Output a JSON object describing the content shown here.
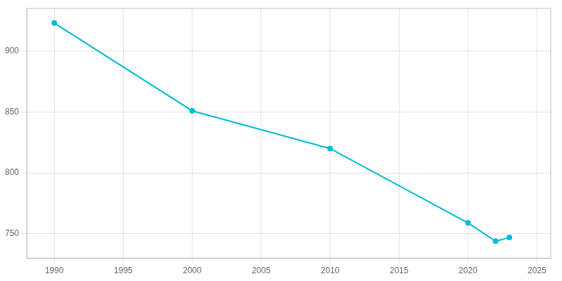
{
  "chart_data": {
    "type": "line",
    "x": [
      1990,
      2000,
      2010,
      2020,
      2022,
      2023
    ],
    "values": [
      923,
      851,
      820,
      759,
      744,
      747
    ],
    "color": "#00bcd4",
    "marker": "circle",
    "xlim": [
      1988,
      2026
    ],
    "ylim": [
      730,
      935
    ],
    "xticks": [
      1990,
      1995,
      2000,
      2005,
      2010,
      2015,
      2020,
      2025
    ],
    "yticks": [
      750,
      800,
      850,
      900
    ],
    "grid": true
  }
}
